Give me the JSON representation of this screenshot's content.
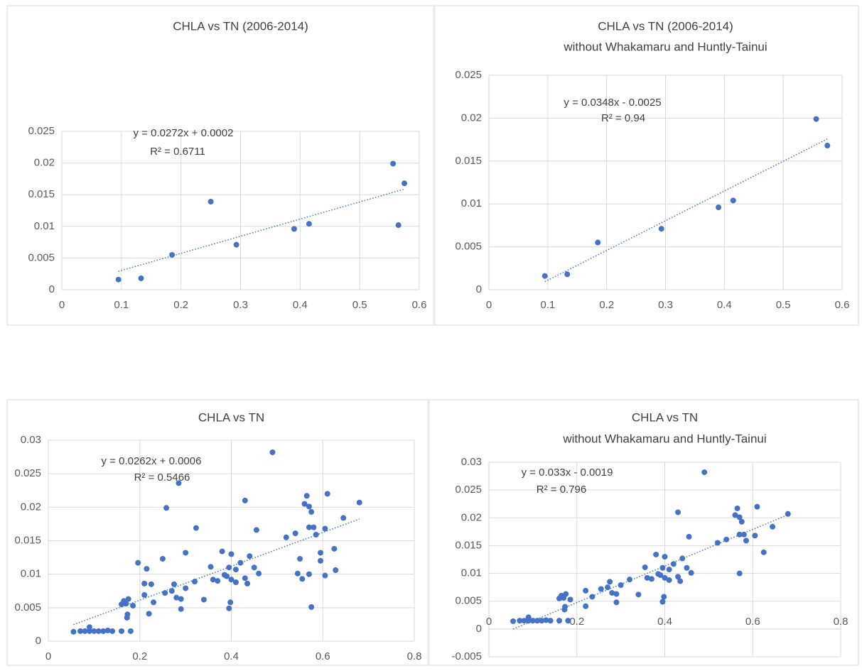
{
  "chart_data": [
    {
      "type": "scatter",
      "title": "CHLA vs TN (2006-2014)",
      "x": [
        0.095,
        0.133,
        0.185,
        0.25,
        0.293,
        0.39,
        0.415,
        0.556,
        0.565,
        0.575
      ],
      "values": [
        0.0016,
        0.0018,
        0.0055,
        0.0139,
        0.0071,
        0.0096,
        0.0104,
        0.0199,
        0.0102,
        0.0168
      ],
      "color": "#4472c4",
      "xlim": [
        0,
        0.6
      ],
      "xticks": [
        0,
        0.1,
        0.2,
        0.3,
        0.4,
        0.5,
        0.6
      ],
      "ylim": [
        0,
        0.025
      ],
      "yticks": [
        0,
        0.005,
        0.01,
        0.015,
        0.02,
        0.025
      ],
      "grid": true,
      "annotations": [
        "y = 0.0272x + 0.0002",
        "R² = 0.6711"
      ]
    },
    {
      "type": "scatter",
      "title": "CHLA vs TN (2006-2014)",
      "subtitle": "without Whakamaru and Huntly-Tainui",
      "x": [
        0.095,
        0.133,
        0.185,
        0.293,
        0.39,
        0.415,
        0.556,
        0.575
      ],
      "values": [
        0.0016,
        0.0018,
        0.0055,
        0.0071,
        0.0096,
        0.0104,
        0.0199,
        0.0168
      ],
      "color": "#4472c4",
      "xlim": [
        0,
        0.6
      ],
      "xticks": [
        0,
        0.1,
        0.2,
        0.3,
        0.4,
        0.5,
        0.6
      ],
      "ylim": [
        0,
        0.025
      ],
      "yticks": [
        0,
        0.005,
        0.01,
        0.015,
        0.02,
        0.025
      ],
      "grid": true,
      "annotations": [
        "y = 0.0348x - 0.0025",
        "R² = 0.94"
      ]
    },
    {
      "type": "scatter",
      "title": "CHLA vs TN",
      "x": [
        0.055,
        0.07,
        0.08,
        0.09,
        0.09,
        0.1,
        0.11,
        0.12,
        0.13,
        0.14,
        0.16,
        0.18,
        0.196,
        0.16,
        0.165,
        0.17,
        0.175,
        0.172,
        0.173,
        0.185,
        0.21,
        0.21,
        0.215,
        0.22,
        0.225,
        0.23,
        0.25,
        0.255,
        0.258,
        0.27,
        0.275,
        0.285,
        0.28,
        0.29,
        0.29,
        0.3,
        0.3,
        0.32,
        0.323,
        0.34,
        0.355,
        0.36,
        0.37,
        0.38,
        0.385,
        0.39,
        0.395,
        0.395,
        0.398,
        0.4,
        0.4,
        0.41,
        0.41,
        0.42,
        0.43,
        0.43,
        0.435,
        0.44,
        0.45,
        0.455,
        0.46,
        0.49,
        0.52,
        0.54,
        0.545,
        0.55,
        0.555,
        0.56,
        0.565,
        0.57,
        0.57,
        0.57,
        0.575,
        0.575,
        0.58,
        0.585,
        0.595,
        0.595,
        0.605,
        0.605,
        0.61,
        0.625,
        0.628,
        0.645,
        0.68
      ],
      "values": [
        0.0014,
        0.0015,
        0.0015,
        0.0015,
        0.0021,
        0.0015,
        0.0015,
        0.0015,
        0.0016,
        0.0015,
        0.0015,
        0.0015,
        0.0117,
        0.0055,
        0.006,
        0.0056,
        0.0063,
        0.0035,
        0.004,
        0.0053,
        0.0086,
        0.0069,
        0.0108,
        0.0041,
        0.0085,
        0.0058,
        0.0123,
        0.0072,
        0.0199,
        0.0075,
        0.0085,
        0.0236,
        0.0065,
        0.0048,
        0.0063,
        0.0132,
        0.0079,
        0.0089,
        0.0169,
        0.0062,
        0.0111,
        0.0092,
        0.009,
        0.0134,
        0.0099,
        0.0097,
        0.011,
        0.0049,
        0.0058,
        0.0092,
        0.013,
        0.0107,
        0.0088,
        0.0117,
        0.021,
        0.0094,
        0.0086,
        0.0127,
        0.011,
        0.0166,
        0.0101,
        0.0282,
        0.0155,
        0.0161,
        0.0101,
        0.0123,
        0.0093,
        0.0205,
        0.0217,
        0.0201,
        0.017,
        0.01,
        0.0193,
        0.0051,
        0.017,
        0.0159,
        0.0132,
        0.012,
        0.0168,
        0.0098,
        0.022,
        0.0138,
        0.0106,
        0.0184,
        0.0207
      ],
      "color": "#4472c4",
      "xlim": [
        0,
        0.8
      ],
      "xticks": [
        0,
        0.2,
        0.4,
        0.6,
        0.8
      ],
      "ylim": [
        0,
        0.03
      ],
      "yticks": [
        0,
        0.005,
        0.01,
        0.015,
        0.02,
        0.025,
        0.03
      ],
      "grid": true,
      "annotations": [
        "y = 0.0262x + 0.0006",
        "R² = 0.5466"
      ]
    },
    {
      "type": "scatter",
      "title": "CHLA vs TN",
      "subtitle": "without Whakamaru and Huntly-Tainui",
      "x": [
        0.055,
        0.07,
        0.08,
        0.09,
        0.09,
        0.1,
        0.11,
        0.12,
        0.13,
        0.14,
        0.16,
        0.18,
        0.16,
        0.165,
        0.17,
        0.175,
        0.172,
        0.173,
        0.185,
        0.22,
        0.22,
        0.235,
        0.255,
        0.27,
        0.275,
        0.28,
        0.29,
        0.29,
        0.3,
        0.32,
        0.34,
        0.355,
        0.36,
        0.37,
        0.38,
        0.385,
        0.39,
        0.395,
        0.395,
        0.398,
        0.4,
        0.4,
        0.41,
        0.41,
        0.42,
        0.43,
        0.43,
        0.435,
        0.44,
        0.45,
        0.455,
        0.46,
        0.49,
        0.52,
        0.54,
        0.56,
        0.565,
        0.57,
        0.57,
        0.57,
        0.575,
        0.58,
        0.585,
        0.605,
        0.61,
        0.625,
        0.645,
        0.68
      ],
      "values": [
        0.0014,
        0.0015,
        0.0015,
        0.0015,
        0.0021,
        0.0015,
        0.0015,
        0.0015,
        0.0016,
        0.0015,
        0.0015,
        0.0015,
        0.0055,
        0.006,
        0.0056,
        0.0063,
        0.0035,
        0.004,
        0.0053,
        0.0069,
        0.0041,
        0.0058,
        0.0072,
        0.0075,
        0.0085,
        0.0065,
        0.0048,
        0.0063,
        0.0079,
        0.0089,
        0.0062,
        0.0111,
        0.0092,
        0.009,
        0.0134,
        0.0099,
        0.0097,
        0.011,
        0.0049,
        0.0058,
        0.0092,
        0.013,
        0.0107,
        0.0088,
        0.0117,
        0.021,
        0.0094,
        0.0086,
        0.0127,
        0.011,
        0.0166,
        0.0101,
        0.0282,
        0.0155,
        0.0161,
        0.0205,
        0.0217,
        0.0201,
        0.017,
        0.01,
        0.0193,
        0.017,
        0.0159,
        0.0168,
        0.022,
        0.0138,
        0.0184,
        0.0207
      ],
      "color": "#4472c4",
      "xlim": [
        0,
        0.8
      ],
      "xticks": [
        0,
        0.2,
        0.4,
        0.6,
        0.8
      ],
      "ylim": [
        -0.005,
        0.03
      ],
      "yticks": [
        -0.005,
        0,
        0.005,
        0.01,
        0.015,
        0.02,
        0.025,
        0.03
      ],
      "grid": true,
      "annotations": [
        "y = 0.033x - 0.0019",
        "R² = 0.796"
      ]
    }
  ]
}
